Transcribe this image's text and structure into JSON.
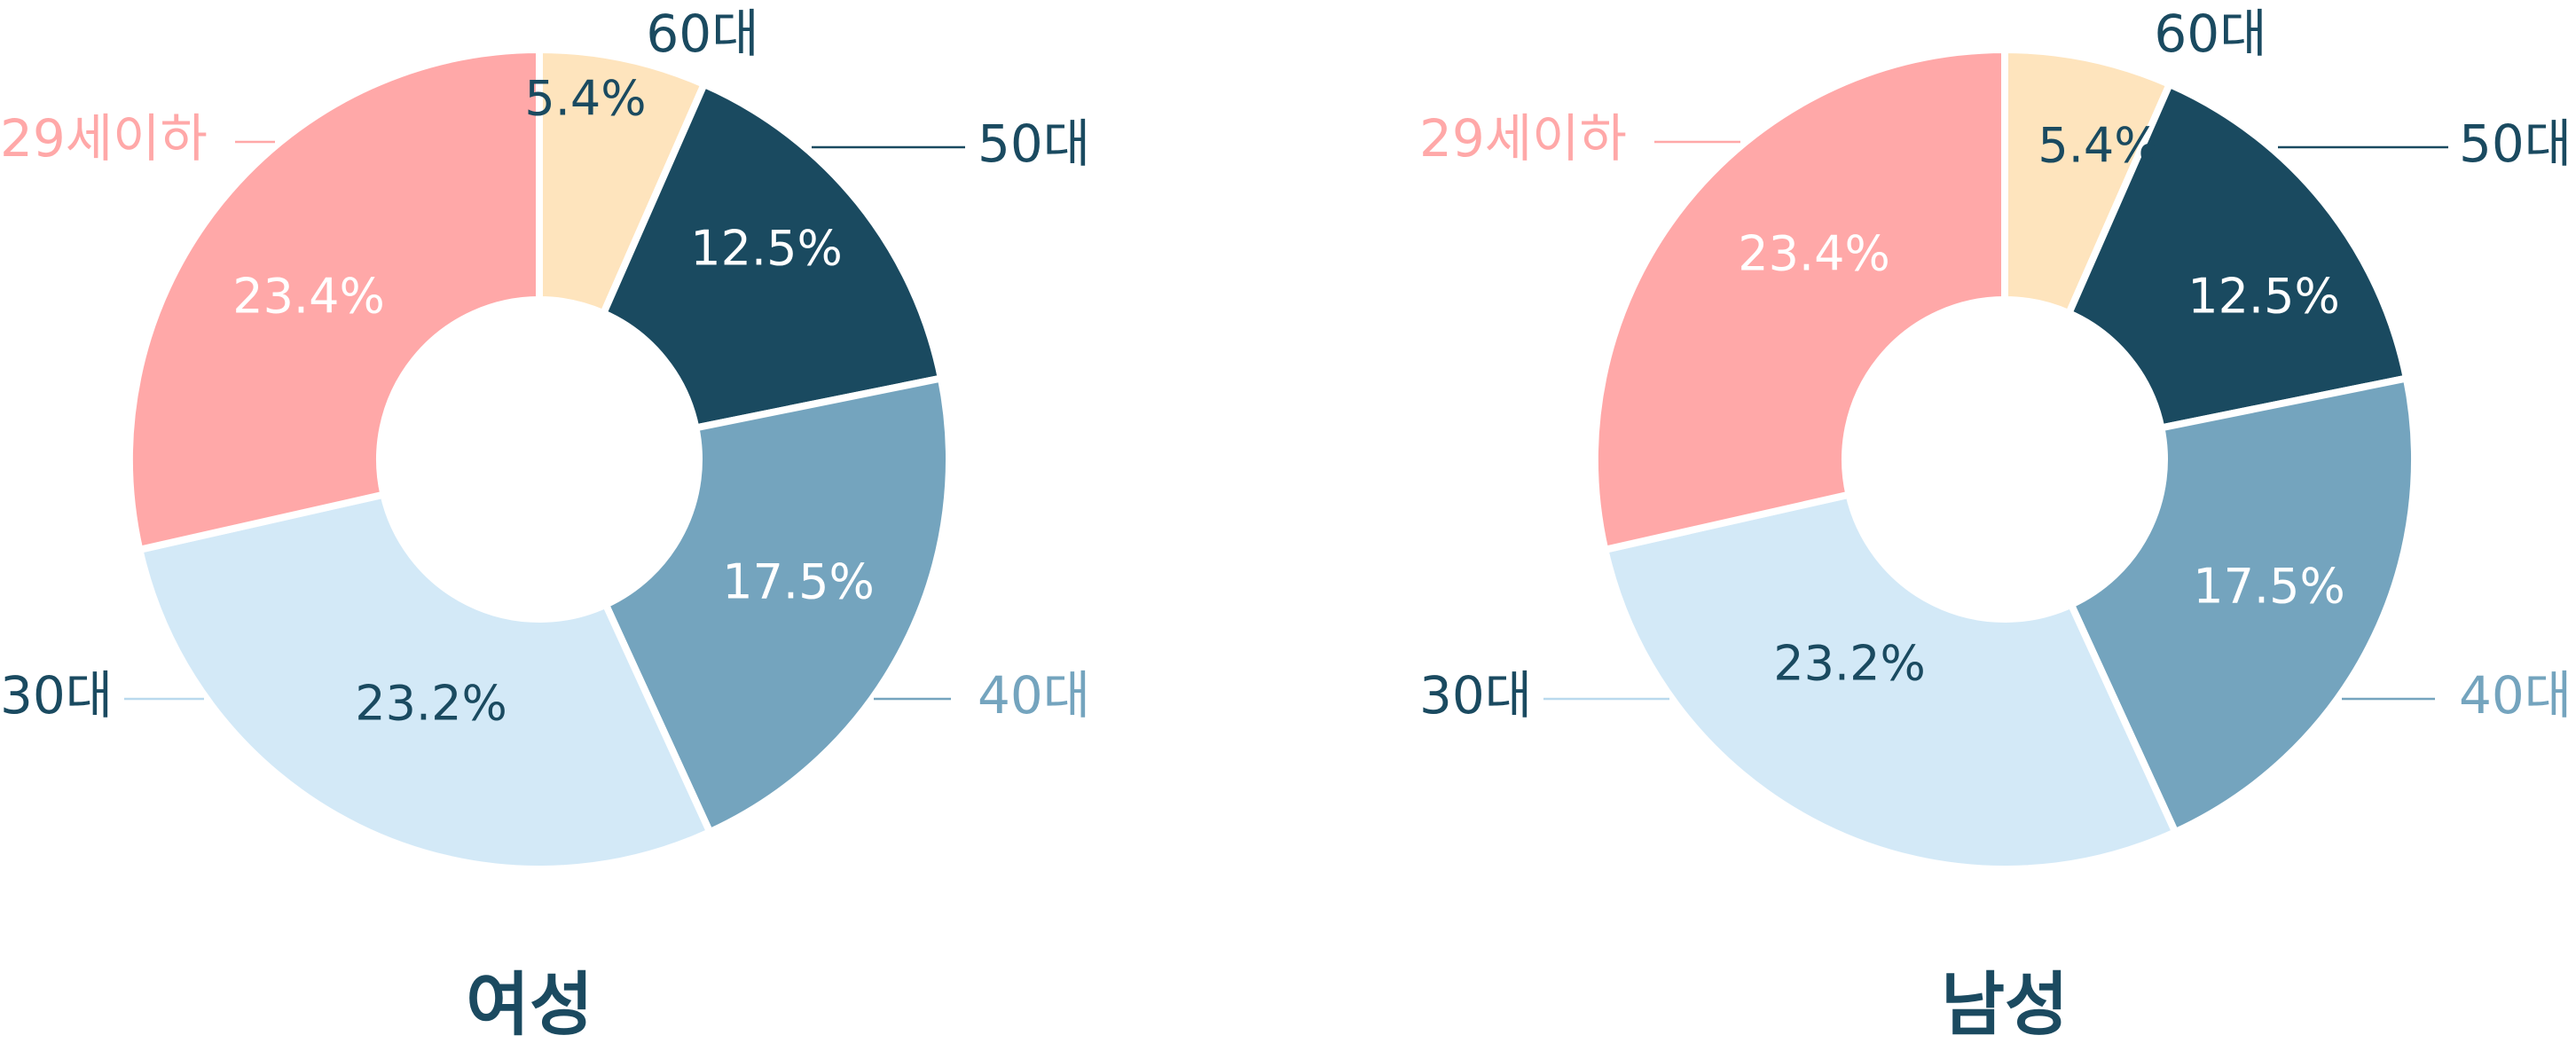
{
  "colors": {
    "29세이하": "#ffa8a8",
    "30대": "#d3e9f7",
    "40대": "#74a4be",
    "50대": "#1a4a60",
    "60대": "#fee4bd",
    "title": "#1b4a60"
  },
  "chart_data": [
    {
      "type": "pie",
      "title": "여성",
      "categories": [
        "60대",
        "50대",
        "40대",
        "30대",
        "29세이하"
      ],
      "values": [
        5.4,
        12.5,
        17.5,
        23.2,
        23.4
      ],
      "value_labels": [
        "5.4%",
        "12.5%",
        "17.5%",
        "23.2%",
        "23.4%"
      ],
      "legend": "outside labels with leader lines"
    },
    {
      "type": "pie",
      "title": "남성",
      "categories": [
        "60대",
        "50대",
        "40대",
        "30대",
        "29세이하"
      ],
      "values": [
        5.4,
        12.5,
        17.5,
        23.2,
        23.4
      ],
      "value_labels": [
        "5.4%",
        "12.5%",
        "17.5%",
        "23.2%",
        "23.4%"
      ],
      "legend": "outside labels with leader lines"
    }
  ]
}
